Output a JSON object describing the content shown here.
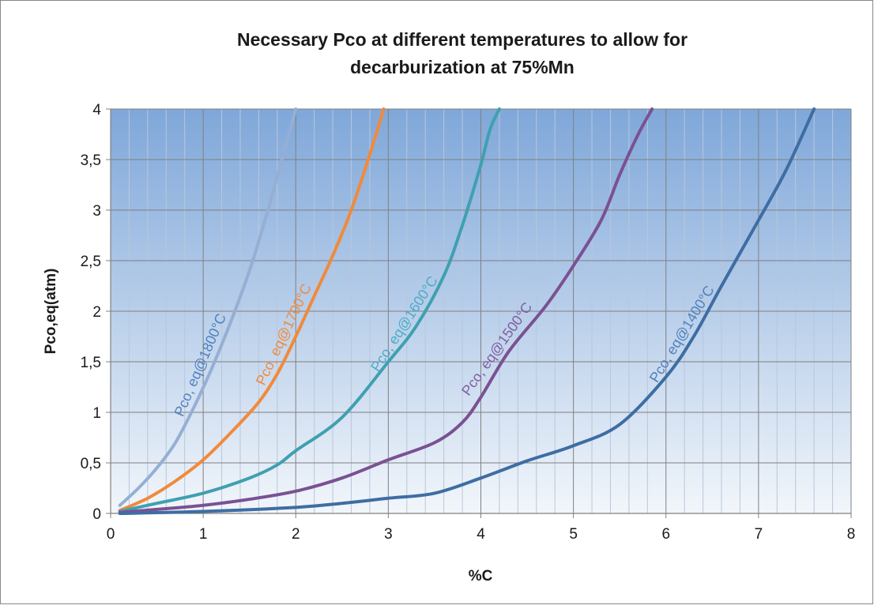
{
  "chart_data": {
    "type": "line",
    "title_lines": [
      "Necessary Pco at different temperatures to allow for",
      "decarburization at 75%Mn"
    ],
    "xlabel": "%C",
    "ylabel": "Pco,eq(atm)",
    "xlim": [
      0,
      8
    ],
    "ylim": [
      0,
      4
    ],
    "x_ticks": [
      "0",
      "1",
      "2",
      "3",
      "4",
      "5",
      "6",
      "7",
      "8"
    ],
    "y_ticks": [
      "0",
      "0,5",
      "1",
      "1,5",
      "2",
      "2,5",
      "3",
      "3,5",
      "4"
    ],
    "grid": true,
    "legend": "none",
    "series": [
      {
        "name": "Pco, eq@1800°C",
        "color": "#95AFD4",
        "label_color": "#4F81BD",
        "points": [
          [
            0.1,
            0.08
          ],
          [
            0.3,
            0.25
          ],
          [
            0.5,
            0.45
          ],
          [
            0.7,
            0.7
          ],
          [
            0.9,
            1.05
          ],
          [
            1.1,
            1.45
          ],
          [
            1.3,
            1.9
          ],
          [
            1.5,
            2.4
          ],
          [
            1.7,
            3.0
          ],
          [
            1.85,
            3.5
          ],
          [
            2.0,
            4.0
          ]
        ]
      },
      {
        "name": "Pco, eq@1700°C",
        "color": "#F08A3C",
        "label_color": "#F08A3C",
        "points": [
          [
            0.1,
            0.03
          ],
          [
            0.4,
            0.15
          ],
          [
            0.7,
            0.32
          ],
          [
            1.0,
            0.53
          ],
          [
            1.3,
            0.8
          ],
          [
            1.6,
            1.1
          ],
          [
            1.8,
            1.38
          ],
          [
            2.0,
            1.75
          ],
          [
            2.2,
            2.15
          ],
          [
            2.4,
            2.55
          ],
          [
            2.6,
            3.0
          ],
          [
            2.8,
            3.55
          ],
          [
            2.95,
            4.0
          ]
        ]
      },
      {
        "name": "Pco, eq@1600°C",
        "color": "#3FA0B0",
        "label_color": "#4BACC6",
        "points": [
          [
            0.1,
            0.02
          ],
          [
            0.5,
            0.1
          ],
          [
            1.0,
            0.2
          ],
          [
            1.5,
            0.35
          ],
          [
            1.8,
            0.48
          ],
          [
            2.0,
            0.62
          ],
          [
            2.5,
            0.95
          ],
          [
            3.0,
            1.5
          ],
          [
            3.3,
            1.85
          ],
          [
            3.6,
            2.35
          ],
          [
            3.8,
            2.85
          ],
          [
            4.0,
            3.45
          ],
          [
            4.1,
            3.8
          ],
          [
            4.2,
            4.0
          ]
        ]
      },
      {
        "name": "Pco, eq@1500°C",
        "color": "#7A5193",
        "label_color": "#7F5FA0",
        "points": [
          [
            0.1,
            0.01
          ],
          [
            0.5,
            0.04
          ],
          [
            1.0,
            0.08
          ],
          [
            1.5,
            0.14
          ],
          [
            2.0,
            0.22
          ],
          [
            2.5,
            0.35
          ],
          [
            3.0,
            0.53
          ],
          [
            3.5,
            0.7
          ],
          [
            3.8,
            0.9
          ],
          [
            4.0,
            1.15
          ],
          [
            4.3,
            1.6
          ],
          [
            4.7,
            2.05
          ],
          [
            5.0,
            2.45
          ],
          [
            5.3,
            2.9
          ],
          [
            5.5,
            3.35
          ],
          [
            5.7,
            3.75
          ],
          [
            5.85,
            4.0
          ]
        ]
      },
      {
        "name": "Pco, eq@1400°C",
        "color": "#3E6DA3",
        "label_color": "#4F81BD",
        "points": [
          [
            0.1,
            0.0
          ],
          [
            1.0,
            0.02
          ],
          [
            2.0,
            0.06
          ],
          [
            2.5,
            0.1
          ],
          [
            3.0,
            0.15
          ],
          [
            3.5,
            0.2
          ],
          [
            4.0,
            0.35
          ],
          [
            4.5,
            0.52
          ],
          [
            5.0,
            0.67
          ],
          [
            5.5,
            0.88
          ],
          [
            6.0,
            1.35
          ],
          [
            6.3,
            1.75
          ],
          [
            6.6,
            2.25
          ],
          [
            7.0,
            2.9
          ],
          [
            7.3,
            3.4
          ],
          [
            7.6,
            4.0
          ]
        ]
      }
    ]
  }
}
